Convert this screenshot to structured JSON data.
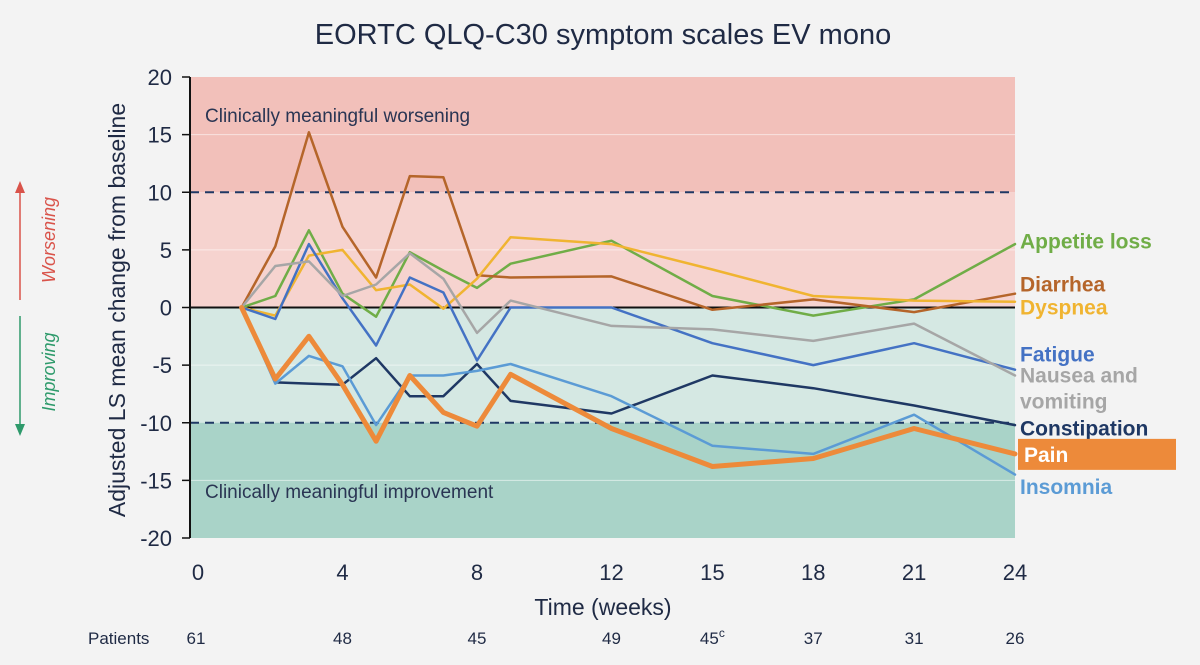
{
  "chart_data": {
    "type": "line",
    "title": "EORTC QLQ-C30 symptom scales EV mono",
    "xlabel": "Time (weeks)",
    "ylabel": "Adjusted LS mean change from baseline",
    "x_ticks": [
      "0",
      "4",
      "8",
      "12",
      "15",
      "18",
      "21",
      "24"
    ],
    "x_tick_values": [
      0,
      4,
      8,
      12,
      15,
      18,
      21,
      24
    ],
    "y_ticks": [
      "20",
      "15",
      "10",
      "5",
      "0",
      "-5",
      "-10",
      "-15",
      "-20"
    ],
    "y_tick_values": [
      20,
      15,
      10,
      5,
      0,
      -5,
      -10,
      -15,
      -20
    ],
    "xlim": [
      0,
      24
    ],
    "ylim": [
      -20,
      20
    ],
    "grid": "horizontal",
    "thresholds": [
      10,
      -10
    ],
    "zones": {
      "worsening": {
        "label": "Clinically meaningful worsening",
        "range": [
          0,
          20
        ],
        "color": "#f6d3cf",
        "strong_color": "#f2c0ba"
      },
      "improvement": {
        "label": "Clinically meaningful improvement",
        "range": [
          -20,
          0
        ],
        "color": "#d5e8e3",
        "strong_color": "#a9d3c8"
      }
    },
    "side_labels": {
      "worsening": {
        "text": "Worsening",
        "color": "#d9534a"
      },
      "improving": {
        "text": "Improving",
        "color": "#2e9a6b"
      }
    },
    "patients": {
      "label": "Patients",
      "counts": [
        {
          "x": 0,
          "value": "61"
        },
        {
          "x": 4,
          "value": "48"
        },
        {
          "x": 8,
          "value": "45"
        },
        {
          "x": 12,
          "value": "49"
        },
        {
          "x": 15,
          "value": "45",
          "superscript": "c"
        },
        {
          "x": 18,
          "value": "37"
        },
        {
          "x": 21,
          "value": "31"
        },
        {
          "x": 24,
          "value": "26"
        }
      ]
    },
    "series": [
      {
        "name": "Appetite loss",
        "color": "#70ad47",
        "width": 2.5,
        "label_y": 5.8,
        "points": [
          [
            1,
            0
          ],
          [
            2,
            1
          ],
          [
            3,
            6.7
          ],
          [
            4,
            1.2
          ],
          [
            5,
            -0.8
          ],
          [
            6,
            4.8
          ],
          [
            7,
            3.2
          ],
          [
            8,
            1.7
          ],
          [
            9,
            3.8
          ],
          [
            12,
            5.8
          ],
          [
            15,
            1
          ],
          [
            18,
            -0.7
          ],
          [
            21,
            0.7
          ],
          [
            24,
            5.5
          ]
        ]
      },
      {
        "name": "Diarrhea",
        "color": "#b5652a",
        "width": 2.5,
        "label_y": 2.1,
        "points": [
          [
            1,
            0
          ],
          [
            2,
            5.3
          ],
          [
            3,
            15.2
          ],
          [
            4,
            7
          ],
          [
            5,
            2.6
          ],
          [
            6,
            11.4
          ],
          [
            7,
            11.3
          ],
          [
            8,
            2.8
          ],
          [
            9,
            2.6
          ],
          [
            12,
            2.7
          ],
          [
            15,
            -0.2
          ],
          [
            18,
            0.7
          ],
          [
            21,
            -0.4
          ],
          [
            24,
            1.2
          ]
        ]
      },
      {
        "name": "Dyspnea",
        "color": "#f0b431",
        "width": 2.5,
        "label_y": 0.1,
        "points": [
          [
            1,
            0
          ],
          [
            2,
            -0.7
          ],
          [
            3,
            4.5
          ],
          [
            4,
            5
          ],
          [
            5,
            1.5
          ],
          [
            6,
            2
          ],
          [
            7,
            -0.1
          ],
          [
            8,
            2.5
          ],
          [
            9,
            6.1
          ],
          [
            12,
            5.5
          ],
          [
            15,
            3.3
          ],
          [
            18,
            1
          ],
          [
            21,
            0.6
          ],
          [
            24,
            0.5
          ]
        ]
      },
      {
        "name": "Fatigue",
        "color": "#4472c4",
        "width": 2.5,
        "label_y": -4,
        "points": [
          [
            1,
            0
          ],
          [
            2,
            -1
          ],
          [
            3,
            5.5
          ],
          [
            4,
            0.8
          ],
          [
            5,
            -3.3
          ],
          [
            6,
            2.6
          ],
          [
            7,
            1.3
          ],
          [
            8,
            -4.6
          ],
          [
            9,
            0
          ],
          [
            12,
            0
          ],
          [
            15,
            -3.1
          ],
          [
            18,
            -5
          ],
          [
            21,
            -3.1
          ],
          [
            24,
            -5.4
          ]
        ]
      },
      {
        "name": "Nausea and vomiting",
        "name_lines": [
          "Nausea and",
          "vomiting"
        ],
        "color": "#a6a6a6",
        "width": 2.5,
        "label_y": -6.5,
        "points": [
          [
            1,
            0
          ],
          [
            2,
            3.6
          ],
          [
            3,
            4
          ],
          [
            4,
            1
          ],
          [
            5,
            2
          ],
          [
            6,
            4.7
          ],
          [
            7,
            2.5
          ],
          [
            8,
            -2.2
          ],
          [
            9,
            0.6
          ],
          [
            12,
            -1.6
          ],
          [
            15,
            -1.9
          ],
          [
            18,
            -2.9
          ],
          [
            21,
            -1.4
          ],
          [
            24,
            -5.9
          ]
        ]
      },
      {
        "name": "Constipation",
        "color": "#1f3864",
        "width": 2.5,
        "label_y": -10.4,
        "points": [
          [
            1,
            0
          ],
          [
            2,
            -6.5
          ],
          [
            3,
            -6.6
          ],
          [
            4,
            -6.7
          ],
          [
            5,
            -4.4
          ],
          [
            6,
            -7.7
          ],
          [
            7,
            -7.7
          ],
          [
            8,
            -4.9
          ],
          [
            9,
            -8.1
          ],
          [
            12,
            -9.2
          ],
          [
            15,
            -5.9
          ],
          [
            18,
            -7
          ],
          [
            21,
            -8.5
          ],
          [
            24,
            -10.2
          ]
        ]
      },
      {
        "name": "Pain",
        "color": "#ed8a3a",
        "width": 5,
        "label_y": -12.7,
        "boxed": true,
        "points": [
          [
            1,
            0
          ],
          [
            2,
            -6.2
          ],
          [
            3,
            -2.5
          ],
          [
            4,
            -6.7
          ],
          [
            5,
            -11.6
          ],
          [
            6,
            -5.9
          ],
          [
            7,
            -9.1
          ],
          [
            8,
            -10.3
          ],
          [
            9,
            -5.8
          ],
          [
            12,
            -10.5
          ],
          [
            15,
            -13.8
          ],
          [
            18,
            -13.1
          ],
          [
            21,
            -10.5
          ],
          [
            24,
            -12.7
          ]
        ]
      },
      {
        "name": "Insomnia",
        "color": "#5b9bd5",
        "width": 2.5,
        "label_y": -15.5,
        "points": [
          [
            1,
            0
          ],
          [
            2,
            -6.6
          ],
          [
            3,
            -4.2
          ],
          [
            4,
            -5.1
          ],
          [
            5,
            -10.2
          ],
          [
            6,
            -5.9
          ],
          [
            7,
            -5.9
          ],
          [
            8,
            -5.5
          ],
          [
            9,
            -4.9
          ],
          [
            12,
            -7.7
          ],
          [
            15,
            -12
          ],
          [
            18,
            -12.7
          ],
          [
            21,
            -9.3
          ],
          [
            24,
            -14.5
          ]
        ]
      }
    ]
  }
}
